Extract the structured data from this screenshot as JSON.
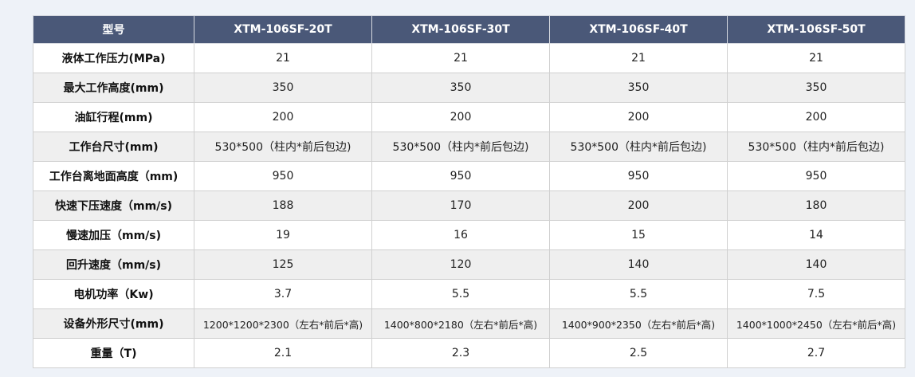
{
  "table": {
    "header": [
      "型号",
      "XTM-106SF-20T",
      "XTM-106SF-30T",
      "XTM-106SF-40T",
      "XTM-106SF-50T"
    ],
    "rows": [
      {
        "label": "液体工作压力(MPa)",
        "values": [
          "21",
          "21",
          "21",
          "21"
        ]
      },
      {
        "label": "最大工作高度(mm)",
        "values": [
          "350",
          "350",
          "350",
          "350"
        ]
      },
      {
        "label": "油缸行程(mm)",
        "values": [
          "200",
          "200",
          "200",
          "200"
        ]
      },
      {
        "label": "工作台尺寸(mm)",
        "values": [
          "530*500（柱内*前后包边)",
          "530*500（柱内*前后包边)",
          "530*500（柱内*前后包边)",
          "530*500（柱内*前后包边)"
        ]
      },
      {
        "label": "工作台离地面高度（mm)",
        "values": [
          "950",
          "950",
          "950",
          "950"
        ]
      },
      {
        "label": "快速下压速度（mm/s)",
        "values": [
          "188",
          "170",
          "200",
          "180"
        ]
      },
      {
        "label": "慢速加压（mm/s)",
        "values": [
          "19",
          "16",
          "15",
          "14"
        ]
      },
      {
        "label": "回升速度（mm/s)",
        "values": [
          "125",
          "120",
          "140",
          "140"
        ]
      },
      {
        "label": "电机功率（Kw)",
        "values": [
          "3.7",
          "5.5",
          "5.5",
          "7.5"
        ]
      },
      {
        "label": "设备外形尺寸(mm)",
        "values": [
          "1200*1200*2300（左右*前后*高)",
          "1400*800*2180（左右*前后*高)",
          "1400*900*2350（左右*前后*高)",
          "1400*1000*2450（左右*前后*高)"
        ]
      },
      {
        "label": "重量（T)",
        "values": [
          "2.1",
          "2.3",
          "2.5",
          "2.7"
        ]
      }
    ]
  },
  "colors": {
    "header_bg": "#4a5878",
    "header_text": "#ffffff",
    "row_alt_bg": "#efefef",
    "row_bg": "#ffffff",
    "page_bg": "#eef2f8"
  }
}
